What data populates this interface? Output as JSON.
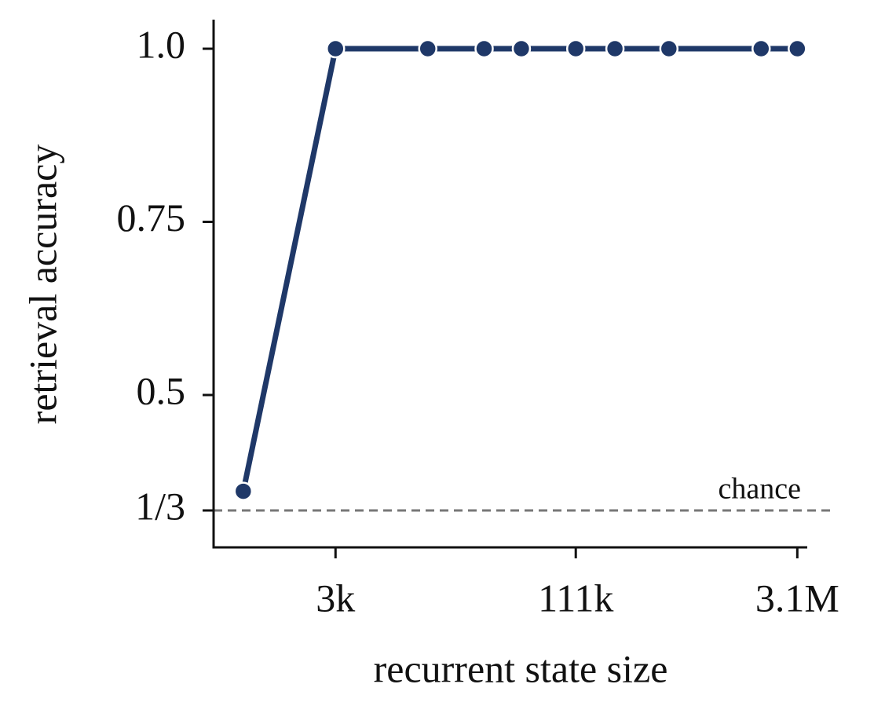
{
  "chart_data": {
    "type": "line",
    "x_label": "recurrent state size",
    "y_label": "retrieval accuracy",
    "x": [
      750,
      3000,
      12000,
      28000,
      49000,
      111000,
      200000,
      450000,
      1800000,
      3100000
    ],
    "series": [
      {
        "color": "#1f3868",
        "values": [
          0.361,
          1.0,
          1.0,
          1.0,
          1.0,
          1.0,
          1.0,
          1.0,
          1.0,
          1.0
        ]
      }
    ],
    "x_scale": "log",
    "xlim": [
      480,
      3600000
    ],
    "xticks": [
      {
        "value": 3000,
        "label": "3k"
      },
      {
        "value": 111000,
        "label": "111k"
      },
      {
        "value": 3100000,
        "label": "3.1M"
      }
    ],
    "ylim": [
      0.28,
      1.042
    ],
    "yticks": [
      {
        "value": 0.3333,
        "label": "1/3"
      },
      0.5,
      0.75,
      {
        "value": 1,
        "label": "1.0"
      }
    ],
    "reference_line": {
      "value": 0.3333,
      "label": "chance",
      "color": "#777777"
    }
  }
}
